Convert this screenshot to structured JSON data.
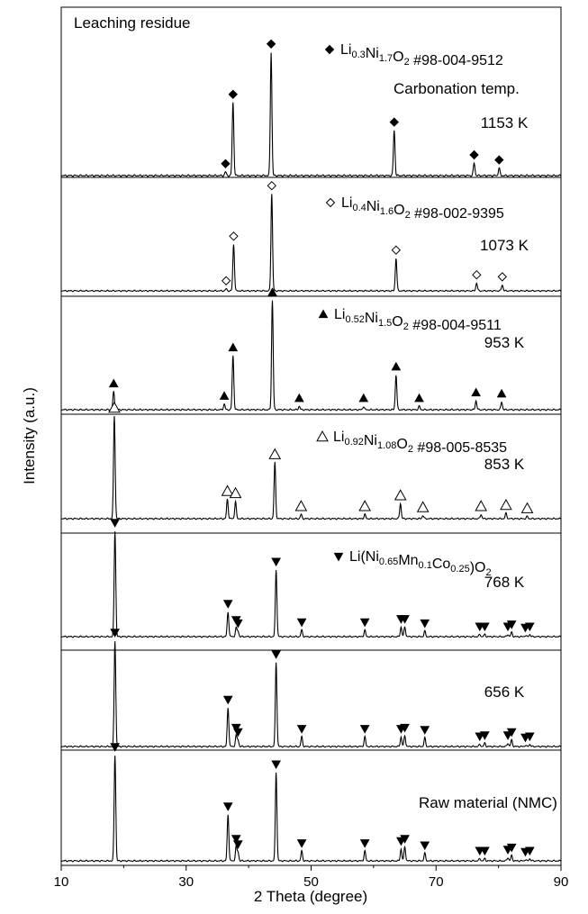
{
  "chart_data": {
    "type": "line",
    "title": "Leaching residue",
    "xlabel": "2 Theta (degree)",
    "ylabel": "Intensity (a.u.)",
    "xlim": [
      10,
      90
    ],
    "xticks": [
      10,
      30,
      50,
      70,
      90
    ],
    "x_tick_labels": [
      "10",
      "30",
      "50",
      "70",
      "90"
    ],
    "header_label": "Carbonation temp.",
    "panels": [
      {
        "label": "1153 K",
        "legend": {
          "marker": "diamond-filled",
          "text": "Li0.3Ni1.7O2 #98-004-9512",
          "parts": [
            [
              "Li",
              ""
            ],
            [
              "0.3",
              "sub"
            ],
            [
              "Ni",
              ""
            ],
            [
              "1.7",
              "sub"
            ],
            [
              "O",
              ""
            ],
            [
              "2",
              "sub"
            ],
            [
              " #98-004-9512",
              ""
            ]
          ]
        },
        "marker": "diamond-filled",
        "peaks": [
          {
            "x": 36.3,
            "h": 0.03,
            "m": true
          },
          {
            "x": 37.5,
            "h": 0.58,
            "m": true
          },
          {
            "x": 43.6,
            "h": 0.98,
            "m": true
          },
          {
            "x": 63.3,
            "h": 0.36,
            "m": true
          },
          {
            "x": 76.1,
            "h": 0.1,
            "m": true
          },
          {
            "x": 80.1,
            "h": 0.06,
            "m": true
          }
        ]
      },
      {
        "label": "1073 K",
        "legend": {
          "marker": "diamond-open",
          "text": "Li0.4Ni1.6O2 #98-002-9395",
          "parts": [
            [
              "Li",
              ""
            ],
            [
              "0.4",
              "sub"
            ],
            [
              "Ni",
              ""
            ],
            [
              "1.6",
              "sub"
            ],
            [
              "O",
              ""
            ],
            [
              "2",
              "sub"
            ],
            [
              " #98-002-9395",
              ""
            ]
          ]
        },
        "marker": "diamond-open",
        "peaks": [
          {
            "x": 36.4,
            "h": 0.02,
            "m": true
          },
          {
            "x": 37.6,
            "h": 0.47,
            "m": true
          },
          {
            "x": 43.7,
            "h": 0.98,
            "m": true
          },
          {
            "x": 63.6,
            "h": 0.33,
            "m": true
          },
          {
            "x": 76.5,
            "h": 0.08,
            "m": true
          },
          {
            "x": 80.6,
            "h": 0.06,
            "m": true
          }
        ]
      },
      {
        "label": "953 K",
        "legend": {
          "marker": "triangle-filled",
          "text": "Li0.52Ni1.5O2 #98-004-9511",
          "parts": [
            [
              "Li",
              ""
            ],
            [
              "0.52",
              "sub"
            ],
            [
              "Ni",
              ""
            ],
            [
              "1.5",
              "sub"
            ],
            [
              "O",
              ""
            ],
            [
              "2",
              "sub"
            ],
            [
              " #98-004-9511",
              ""
            ]
          ]
        },
        "marker": "triangle-filled",
        "peaks": [
          {
            "x": 18.4,
            "h": 0.16,
            "m": true
          },
          {
            "x": 36.1,
            "h": 0.05,
            "m": true
          },
          {
            "x": 37.5,
            "h": 0.48,
            "m": true
          },
          {
            "x": 43.8,
            "h": 0.97,
            "m": true
          },
          {
            "x": 48.1,
            "h": 0.03,
            "m": true
          },
          {
            "x": 58.4,
            "h": 0.03,
            "m": true
          },
          {
            "x": 63.6,
            "h": 0.31,
            "m": true
          },
          {
            "x": 67.3,
            "h": 0.03,
            "m": true
          },
          {
            "x": 76.4,
            "h": 0.08,
            "m": true
          },
          {
            "x": 80.5,
            "h": 0.07,
            "m": true
          }
        ]
      },
      {
        "label": "853 K",
        "legend": {
          "marker": "triangle-open",
          "text": "Li0.92Ni1.08O2 #98-005-8535",
          "parts": [
            [
              "Li",
              ""
            ],
            [
              "0.92",
              "sub"
            ],
            [
              "Ni",
              ""
            ],
            [
              "1.08",
              "sub"
            ],
            [
              "O",
              ""
            ],
            [
              "2",
              "sub"
            ],
            [
              " #98-005-8535",
              ""
            ]
          ]
        },
        "marker": "triangle-open",
        "peaks": [
          {
            "x": 18.5,
            "h": 0.95,
            "m": true
          },
          {
            "x": 36.6,
            "h": 0.18,
            "m": true
          },
          {
            "x": 37.9,
            "h": 0.16,
            "m": true
          },
          {
            "x": 44.2,
            "h": 0.52,
            "m": true
          },
          {
            "x": 48.4,
            "h": 0.04,
            "m": true
          },
          {
            "x": 58.6,
            "h": 0.04,
            "m": true
          },
          {
            "x": 64.3,
            "h": 0.14,
            "m": true
          },
          {
            "x": 67.9,
            "h": 0.03,
            "m": true
          },
          {
            "x": 77.2,
            "h": 0.04,
            "m": true
          },
          {
            "x": 81.2,
            "h": 0.05,
            "m": true
          },
          {
            "x": 84.6,
            "h": 0.02,
            "m": true
          }
        ]
      },
      {
        "label": "768 K",
        "legend": {
          "marker": "triangle-down",
          "text": "Li(Ni0.65Mn0.1Co0.25)O2",
          "parts": [
            [
              "Li(Ni",
              ""
            ],
            [
              "0.65",
              "sub"
            ],
            [
              "Mn",
              ""
            ],
            [
              "0.1",
              "sub"
            ],
            [
              "Co",
              ""
            ],
            [
              "0.25",
              "sub"
            ],
            [
              ")O",
              ""
            ],
            [
              "2",
              "sub"
            ]
          ]
        },
        "marker": "triangle-down",
        "peaks": [
          {
            "x": 18.6,
            "h": 0.98,
            "m": true
          },
          {
            "x": 36.7,
            "h": 0.23,
            "m": true
          },
          {
            "x": 38.0,
            "h": 0.08,
            "m": true
          },
          {
            "x": 38.3,
            "h": 0.05,
            "m": true
          },
          {
            "x": 44.4,
            "h": 0.62,
            "m": true
          },
          {
            "x": 48.5,
            "h": 0.06,
            "m": true
          },
          {
            "x": 58.6,
            "h": 0.06,
            "m": true
          },
          {
            "x": 64.4,
            "h": 0.09,
            "m": true
          },
          {
            "x": 65.0,
            "h": 0.09,
            "m": true
          },
          {
            "x": 68.2,
            "h": 0.05,
            "m": true
          },
          {
            "x": 77.0,
            "h": 0.02,
            "m": true
          },
          {
            "x": 77.8,
            "h": 0.02,
            "m": true
          },
          {
            "x": 81.5,
            "h": 0.02,
            "m": true
          },
          {
            "x": 82.1,
            "h": 0.04,
            "m": true
          },
          {
            "x": 84.3,
            "h": 0.01,
            "m": true
          },
          {
            "x": 85.0,
            "h": 0.02,
            "m": true
          }
        ]
      },
      {
        "label": "656 K",
        "legend": null,
        "marker": "triangle-down",
        "peaks": [
          {
            "x": 18.6,
            "h": 0.98,
            "m": true
          },
          {
            "x": 36.7,
            "h": 0.36,
            "m": true
          },
          {
            "x": 38.0,
            "h": 0.1,
            "m": true
          },
          {
            "x": 38.3,
            "h": 0.06,
            "m": true
          },
          {
            "x": 44.4,
            "h": 0.78,
            "m": true
          },
          {
            "x": 48.5,
            "h": 0.09,
            "m": true
          },
          {
            "x": 58.6,
            "h": 0.09,
            "m": true
          },
          {
            "x": 64.4,
            "h": 0.09,
            "m": true
          },
          {
            "x": 65.0,
            "h": 0.1,
            "m": true
          },
          {
            "x": 68.2,
            "h": 0.08,
            "m": true
          },
          {
            "x": 77.0,
            "h": 0.02,
            "m": true
          },
          {
            "x": 77.8,
            "h": 0.03,
            "m": true
          },
          {
            "x": 81.5,
            "h": 0.03,
            "m": true
          },
          {
            "x": 82.1,
            "h": 0.06,
            "m": true
          },
          {
            "x": 84.3,
            "h": 0.01,
            "m": true
          },
          {
            "x": 85.0,
            "h": 0.02,
            "m": true
          }
        ]
      },
      {
        "label": "Raw material (NMC)",
        "legend": null,
        "marker": "triangle-down",
        "peaks": [
          {
            "x": 18.6,
            "h": 0.98,
            "m": true
          },
          {
            "x": 36.7,
            "h": 0.43,
            "m": true
          },
          {
            "x": 38.0,
            "h": 0.13,
            "m": true
          },
          {
            "x": 38.3,
            "h": 0.08,
            "m": true
          },
          {
            "x": 44.4,
            "h": 0.82,
            "m": true
          },
          {
            "x": 48.5,
            "h": 0.09,
            "m": true
          },
          {
            "x": 58.6,
            "h": 0.09,
            "m": true
          },
          {
            "x": 64.4,
            "h": 0.11,
            "m": true
          },
          {
            "x": 65.0,
            "h": 0.13,
            "m": true
          },
          {
            "x": 68.2,
            "h": 0.07,
            "m": true
          },
          {
            "x": 77.0,
            "h": 0.02,
            "m": true
          },
          {
            "x": 77.8,
            "h": 0.02,
            "m": true
          },
          {
            "x": 81.5,
            "h": 0.03,
            "m": true
          },
          {
            "x": 82.1,
            "h": 0.05,
            "m": true
          },
          {
            "x": 84.3,
            "h": 0.01,
            "m": true
          },
          {
            "x": 85.0,
            "h": 0.02,
            "m": true
          }
        ]
      }
    ]
  }
}
